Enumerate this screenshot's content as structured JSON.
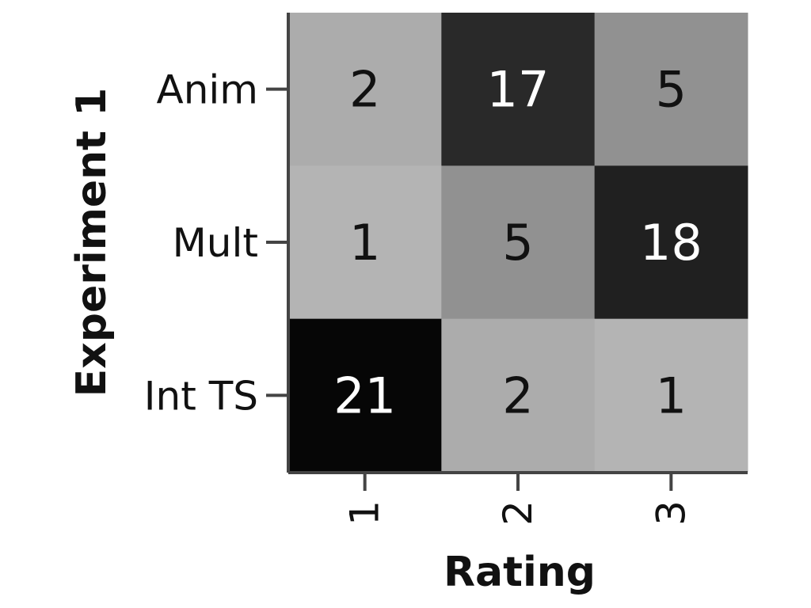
{
  "chart_data": {
    "type": "heatmap",
    "xlabel": "Rating",
    "ylabel": "Experiment 1",
    "x_categories": [
      "1",
      "2",
      "3"
    ],
    "y_categories": [
      "Anim",
      "Mult",
      "Int TS"
    ],
    "values": [
      [
        2,
        17,
        5
      ],
      [
        1,
        5,
        18
      ],
      [
        21,
        2,
        1
      ]
    ],
    "colormap": "grayscale (higher count = darker)",
    "color_range": [
      0,
      21
    ],
    "grid": false,
    "legend": "none"
  }
}
